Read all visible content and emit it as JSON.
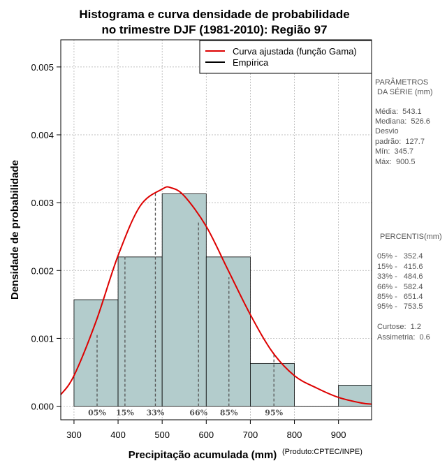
{
  "chart_data": {
    "type": "bar",
    "title": [
      "Histograma e curva densidade de probabilidade",
      "no trimestre DJF (1981-2010): Região 97"
    ],
    "xlabel": "Precipitação acumulada (mm)",
    "ylabel": "Densidade de probabilidade",
    "credit": "(Produto:CPTEC/INPE)",
    "xlim": [
      270,
      975
    ],
    "ylim": [
      -0.0002,
      0.0054
    ],
    "xticks": [
      300,
      400,
      500,
      600,
      700,
      800,
      900
    ],
    "yticks": [
      0.0,
      0.001,
      0.002,
      0.003,
      0.004,
      0.005
    ],
    "ytick_labels": [
      "0.000",
      "0.001",
      "0.002",
      "0.003",
      "0.004",
      "0.005"
    ],
    "grid": true,
    "bins": [
      {
        "from": 300,
        "to": 400,
        "density": 0.00157
      },
      {
        "from": 400,
        "to": 500,
        "density": 0.0022
      },
      {
        "from": 500,
        "to": 600,
        "density": 0.00313
      },
      {
        "from": 600,
        "to": 700,
        "density": 0.0022
      },
      {
        "from": 700,
        "to": 800,
        "density": 0.00063
      },
      {
        "from": 800,
        "to": 900,
        "density": 0.0
      },
      {
        "from": 900,
        "to": 1000,
        "density": 0.00031
      }
    ],
    "curve": {
      "name": "Curva ajustada (função Gama)",
      "color": "#dd0000",
      "x": [
        270,
        300,
        350,
        400,
        450,
        500,
        520,
        550,
        600,
        650,
        700,
        750,
        800,
        850,
        900,
        950,
        975
      ],
      "y": [
        0.00017,
        0.00045,
        0.00125,
        0.00222,
        0.00295,
        0.0032,
        0.00322,
        0.0031,
        0.00265,
        0.002,
        0.00135,
        0.0008,
        0.00045,
        0.00027,
        0.00013,
        5e-05,
        3e-05
      ]
    },
    "empirical": {
      "name": "Empírica",
      "color": "#000000"
    },
    "percentile_markers": [
      {
        "label": "05%",
        "x": 352.4,
        "density": 0.00107
      },
      {
        "label": "15%",
        "x": 415.6,
        "density": 0.00221
      },
      {
        "label": "33%",
        "x": 484.6,
        "density": 0.00315
      },
      {
        "label": "66%",
        "x": 582.4,
        "density": 0.00272
      },
      {
        "label": "85%",
        "x": 651.4,
        "density": 0.0019
      },
      {
        "label": "95%",
        "x": 753.5,
        "density": 0.00076
      }
    ],
    "legend": {
      "position": "top-right"
    },
    "colors": {
      "bar_fill": "#b3cccc",
      "curve": "#dd0000",
      "side_text": "#555555"
    }
  },
  "side_panel": {
    "params_title": [
      "PARÂMETROS",
      " DA SÉRIE (mm)"
    ],
    "params": [
      "Média:  543.1",
      "Mediana:  526.6",
      "Desvio",
      "padrão:  127.7",
      "Mín:  345.7",
      "Máx:  900.5"
    ],
    "percentis_title": "PERCENTIS(mm)",
    "percentis": [
      "05% -   352.4",
      "15% -   415.6",
      "33% -   484.6",
      "66% -   582.4",
      "85% -   651.4",
      "95% -   753.5"
    ],
    "stats": [
      "Curtose:  1.2",
      "Assimetria:  0.6"
    ]
  }
}
